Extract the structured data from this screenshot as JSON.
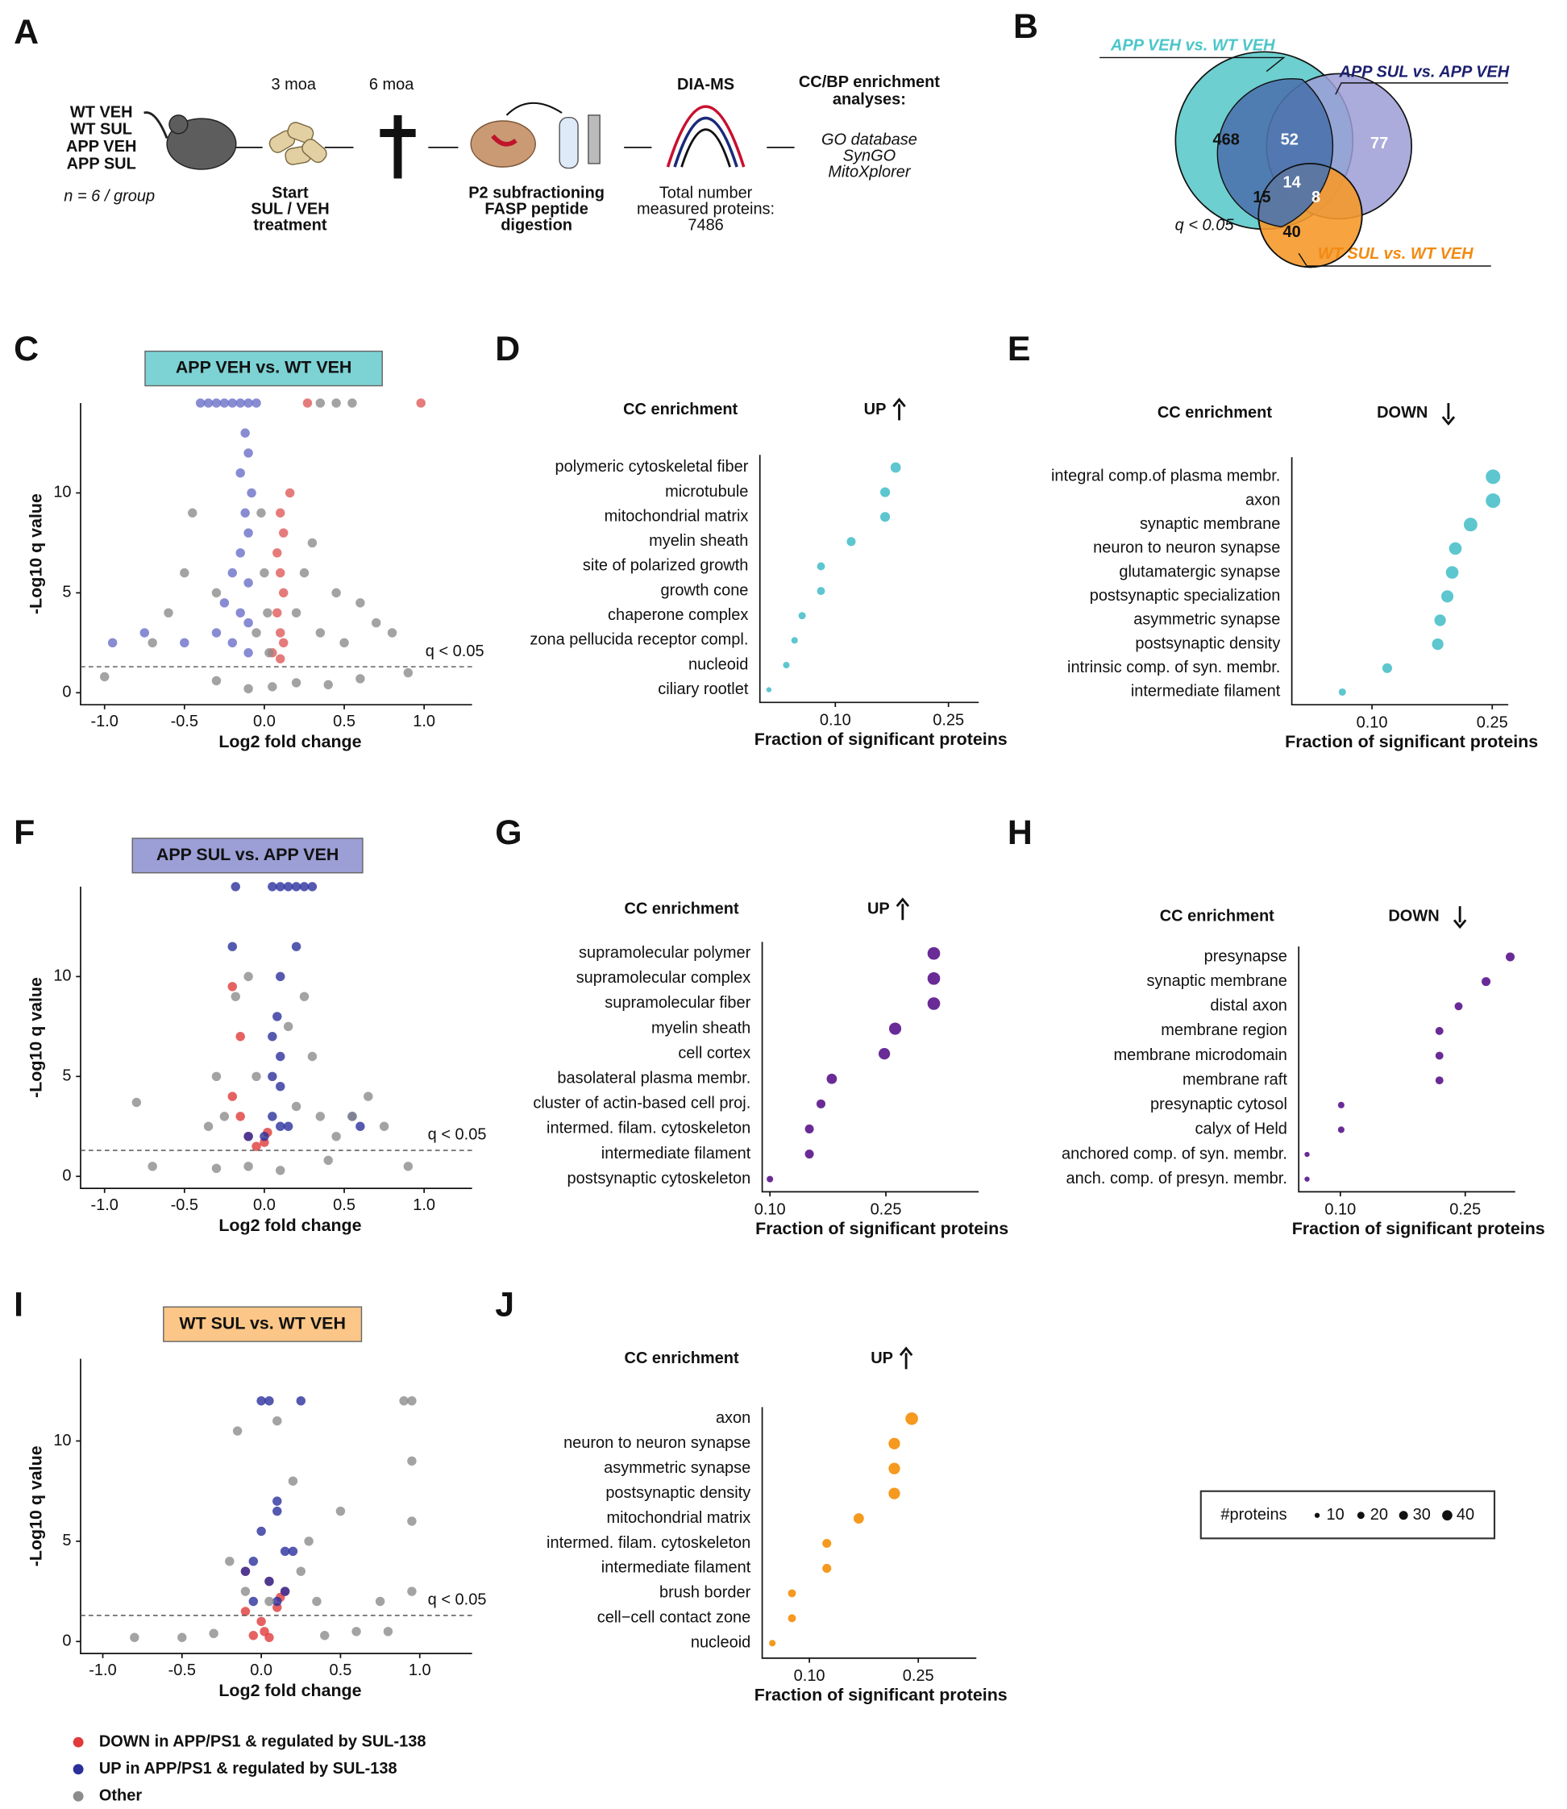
{
  "panels": [
    "A",
    "B",
    "C",
    "D",
    "E",
    "F",
    "G",
    "H",
    "I",
    "J"
  ],
  "design": {
    "groups": [
      "WT VEH",
      "WT SUL",
      "APP VEH",
      "APP SUL"
    ],
    "n_note": "n = 6 / group",
    "times": [
      "3 moa",
      "6 moa"
    ],
    "treatment": [
      "Start",
      "SUL / VEH",
      "treatment"
    ],
    "processing": [
      "P2 subfractioning",
      "FASP peptide",
      "digestion"
    ],
    "ms": {
      "title": "DIA-MS",
      "lines": [
        "Total number",
        "measured proteins:",
        "7486"
      ]
    },
    "analysis": {
      "title": [
        "CC/BP enrichment",
        "analyses:"
      ],
      "databases": [
        "GO database",
        "SynGO",
        "MitoXplorer"
      ]
    }
  },
  "venn": {
    "sets": [
      {
        "name": "APP VEH vs. WT VEH",
        "color": "#6dcfcf"
      },
      {
        "name": "APP SUL vs. APP VEH",
        "color": "#9c9ed6"
      },
      {
        "name": "WT SUL vs. WT VEH",
        "color": "#f5992b"
      }
    ],
    "counts": [
      468,
      52,
      77,
      14,
      15,
      8,
      40
    ],
    "note": "q < 0.05"
  },
  "chart_data": [
    {
      "type": "scatter",
      "title": "APP VEH vs. WT VEH",
      "title_color": "#7dd2d4",
      "xlabel": "Log2 fold change",
      "ylabel": "-Log10 q value",
      "xlim": [
        -1.15,
        1.3
      ],
      "ylim": [
        -0.6,
        14.5
      ],
      "xticks": [
        {
          "value": -1,
          "label": "-1.0"
        },
        -0.5,
        {
          "value": 0,
          "label": "0.0"
        },
        0.5,
        {
          "value": 1,
          "label": "1.0"
        }
      ],
      "yticks": [
        0,
        5,
        10
      ],
      "threshold": {
        "value": 1.3,
        "label": "q < 0.05"
      },
      "series": [
        {
          "color": "#6a6fc8",
          "x": [
            -0.4,
            -0.35,
            -0.3,
            -0.25,
            -0.2,
            -0.15,
            -0.1,
            -0.05,
            -0.12,
            -0.1,
            -0.15,
            -0.08,
            -0.12,
            -0.1,
            -0.15,
            -0.2,
            -0.1,
            -0.25,
            -0.15,
            -0.1,
            -0.3,
            -0.2,
            -0.95,
            -0.75,
            -0.5,
            -0.1
          ],
          "values": [
            14.5,
            14.5,
            14.5,
            14.5,
            14.5,
            14.5,
            14.5,
            14.5,
            13,
            12,
            11,
            10,
            9,
            8,
            7,
            6,
            5.5,
            4.5,
            4,
            3.5,
            3,
            2.5,
            2.5,
            3,
            2.5,
            2
          ]
        },
        {
          "color": "#e05a5a",
          "x": [
            0.27,
            0.98,
            0.16,
            0.1,
            0.12,
            0.08,
            0.1,
            0.12,
            0.08,
            0.1,
            0.12,
            0.05,
            0.1
          ],
          "values": [
            14.5,
            14.5,
            10,
            9,
            8,
            7,
            6,
            5,
            4,
            3,
            2.5,
            2,
            1.7
          ]
        },
        {
          "color": "#8c8c8c",
          "x": [
            0.35,
            0.45,
            0.55,
            -0.45,
            -0.5,
            0.3,
            0.45,
            0.6,
            0.7,
            0.8,
            -0.6,
            -0.7,
            0.35,
            0.5,
            -0.02,
            0,
            0.02,
            -0.05,
            0.03,
            0.2,
            -0.3,
            0.25,
            0.9,
            -1,
            -0.3,
            0.2,
            0.05,
            -0.1,
            0.4,
            0.6
          ],
          "values": [
            14.5,
            14.5,
            14.5,
            9,
            6,
            7.5,
            5,
            4.5,
            3.5,
            3,
            4,
            2.5,
            3,
            2.5,
            9,
            6,
            4,
            3,
            2,
            4,
            5,
            6,
            1,
            0.8,
            0.6,
            0.5,
            0.3,
            0.2,
            0.4,
            0.7
          ]
        }
      ]
    },
    {
      "type": "dot",
      "title": "CC enrichment",
      "direction": "UP",
      "arrow": "up",
      "color": "#5ec6cf",
      "xlabel": "Fraction of significant proteins",
      "xlim": [
        0,
        0.29
      ],
      "xticks": [
        {
          "value": 0.1,
          "label": "0.10"
        },
        {
          "value": 0.25,
          "label": "0.25"
        }
      ],
      "categories": [
        "polymeric cytoskeletal fiber",
        "microtubule",
        "mitochondrial matrix",
        "myelin sheath",
        "site of polarized growth",
        "growth cone",
        "chaperone complex",
        "zona pellucida receptor compl.",
        "nucleoid",
        "ciliary rootlet"
      ],
      "values": [
        0.18,
        0.166,
        0.166,
        0.121,
        0.081,
        0.081,
        0.056,
        0.046,
        0.035,
        0.012
      ],
      "sizes": [
        20,
        18,
        18,
        15,
        12,
        12,
        10,
        8,
        8,
        5
      ]
    },
    {
      "type": "dot",
      "title": "CC enrichment",
      "direction": "DOWN",
      "arrow": "down",
      "color": "#5ec6cf",
      "xlabel": "Fraction of significant proteins",
      "xlim": [
        0,
        0.27
      ],
      "xticks": [
        {
          "value": 0.1,
          "label": "0.10"
        },
        {
          "value": 0.25,
          "label": "0.25"
        }
      ],
      "categories": [
        "integral comp.of plasma membr.",
        "axon",
        "synaptic membrane",
        "neuron to neuron synapse",
        "glutamatergic synapse",
        "postsynaptic specialization",
        "asymmetric synapse",
        "postsynaptic density",
        "intrinsic comp. of syn. membr.",
        "intermediate filament"
      ],
      "values": [
        0.251,
        0.251,
        0.223,
        0.204,
        0.2,
        0.194,
        0.185,
        0.182,
        0.119,
        0.063
      ],
      "sizes": [
        40,
        40,
        35,
        30,
        30,
        28,
        25,
        25,
        18,
        10
      ]
    },
    {
      "type": "scatter",
      "title": "APP SUL vs. APP VEH",
      "title_color": "#9c9ed6",
      "xlabel": "Log2 fold change",
      "ylabel": "-Log10 q value",
      "xlim": [
        -1.15,
        1.3
      ],
      "ylim": [
        -0.6,
        14.5
      ],
      "xticks": [
        {
          "value": -1,
          "label": "-1.0"
        },
        -0.5,
        {
          "value": 0,
          "label": "0.0"
        },
        0.5,
        {
          "value": 1,
          "label": "1.0"
        }
      ],
      "yticks": [
        0,
        5,
        10
      ],
      "threshold": {
        "value": 1.3,
        "label": "q < 0.05"
      },
      "series": [
        {
          "color": "#e03a3a",
          "x": [
            -0.2,
            -0.15,
            -0.2,
            -0.15,
            -0.1,
            -0.05,
            0,
            0.02
          ],
          "values": [
            9.5,
            7,
            4,
            3,
            2,
            1.5,
            1.7,
            2.2
          ]
        },
        {
          "color": "#2a2f9c",
          "x": [
            0.05,
            0.1,
            0.15,
            0.2,
            0.25,
            0.3,
            -0.18,
            0.2,
            -0.2,
            0.1,
            0.08,
            0.05,
            0.1,
            0.05,
            0.1,
            0.05,
            0.1,
            0,
            0.15,
            -0.1,
            0.6,
            0.55
          ],
          "values": [
            14.5,
            14.5,
            14.5,
            14.5,
            14.5,
            14.5,
            14.5,
            11.5,
            11.5,
            10,
            8,
            7,
            6,
            5,
            4.5,
            3,
            2.5,
            2,
            2.5,
            2,
            2.5,
            3
          ]
        },
        {
          "color": "#8c8c8c",
          "x": [
            -0.8,
            -0.3,
            -0.1,
            -0.18,
            0.25,
            0.3,
            0.15,
            0.35,
            0.45,
            0.55,
            0.65,
            0.75,
            -0.25,
            -0.35,
            0.2,
            -0.05,
            0.9,
            -0.7,
            0.4,
            -0.3,
            0.1,
            -0.1
          ],
          "values": [
            3.7,
            5,
            10,
            9,
            9,
            6,
            7.5,
            3,
            2,
            3,
            4,
            2.5,
            3,
            2.5,
            3.5,
            5,
            0.5,
            0.5,
            0.8,
            0.4,
            0.3,
            0.5
          ]
        }
      ]
    },
    {
      "type": "dot",
      "title": "CC enrichment",
      "direction": "UP",
      "arrow": "up",
      "color": "#6a2b96",
      "xlabel": "Fraction of significant proteins",
      "xlim": [
        0.09,
        0.37
      ],
      "xticks": [
        {
          "value": 0.1,
          "label": "0.10"
        },
        {
          "value": 0.25,
          "label": "0.25"
        }
      ],
      "categories": [
        "supramolecular polymer",
        "supramolecular complex",
        "supramolecular fiber",
        "myelin sheath",
        "cell cortex",
        "basolateral plasma membr.",
        "cluster of actin-based cell proj.",
        "intermed. filam. cytoskeleton",
        "intermediate filament",
        "postsynaptic cytoskeleton"
      ],
      "values": [
        0.312,
        0.312,
        0.312,
        0.262,
        0.248,
        0.18,
        0.166,
        0.151,
        0.151,
        0.1
      ],
      "sizes": [
        30,
        30,
        30,
        28,
        25,
        20,
        15,
        15,
        15,
        8
      ]
    },
    {
      "type": "dot",
      "title": "CC enrichment",
      "direction": "DOWN",
      "arrow": "down",
      "color": "#6a2b96",
      "xlabel": "Fraction of significant proteins",
      "xlim": [
        0.05,
        0.31
      ],
      "xticks": [
        {
          "value": 0.1,
          "label": "0.10"
        },
        {
          "value": 0.25,
          "label": "0.25"
        }
      ],
      "categories": [
        "presynapse",
        "synaptic membrane",
        "distal axon",
        "membrane region",
        "membrane microdomain",
        "membrane raft",
        "presynaptic cytosol",
        "calyx of Held",
        "anchored comp. of syn. membr.",
        "anch. comp. of presyn. membr."
      ],
      "values": [
        0.304,
        0.275,
        0.242,
        0.219,
        0.219,
        0.219,
        0.101,
        0.101,
        0.06,
        0.06
      ],
      "sizes": [
        15,
        15,
        12,
        12,
        12,
        12,
        8,
        8,
        5,
        5
      ]
    },
    {
      "type": "scatter",
      "title": "WT SUL vs. WT VEH",
      "title_color": "#fbc687",
      "xlabel": "Log2 fold change",
      "ylabel": "-Log10 q value",
      "xlim": [
        -1.14,
        1.33
      ],
      "ylim": [
        -0.6,
        14.1
      ],
      "xticks": [
        {
          "value": -1,
          "label": "-1.0"
        },
        -0.5,
        {
          "value": 0,
          "label": "0.0"
        },
        0.5,
        {
          "value": 1,
          "label": "1.0"
        }
      ],
      "yticks": [
        0,
        5,
        10
      ],
      "threshold": {
        "value": 1.3,
        "label": "q < 0.05"
      },
      "series": [
        {
          "name": "DOWN in APP/PS1 & regulated by SUL-138",
          "color": "#e03a3a",
          "x": [
            -0.1,
            0.05,
            0.15,
            -0.1,
            0,
            0.02,
            0.05,
            -0.05,
            0.1,
            0.12
          ],
          "values": [
            3.5,
            3,
            2.5,
            1.5,
            1,
            0.5,
            0.2,
            0.3,
            1.7,
            2.2
          ]
        },
        {
          "name": "UP in APP/PS1 & regulated by SUL-138",
          "color": "#2a2f9c",
          "x": [
            0,
            0.05,
            0.25,
            0.1,
            0.1,
            0,
            0.15,
            -0.1,
            0.05,
            0.1,
            -0.05,
            0.15,
            0.2,
            -0.05
          ],
          "values": [
            12,
            12,
            12,
            7,
            6.5,
            5.5,
            4.5,
            3.5,
            3,
            2,
            2,
            2.5,
            4.5,
            4
          ]
        },
        {
          "name": "Other",
          "color": "#8c8c8c",
          "x": [
            -0.15,
            0.1,
            0.9,
            0.95,
            0.95,
            0.95,
            0.95,
            0.5,
            0.2,
            0.3,
            0.25,
            -0.2,
            0.35,
            0.75,
            -0.1,
            0.05,
            0.8,
            -0.3,
            -0.8,
            0.4,
            0.6,
            -0.5
          ],
          "values": [
            10.5,
            11,
            12,
            12,
            9,
            6,
            2.5,
            6.5,
            8,
            5,
            3.5,
            4,
            2,
            2,
            2.5,
            2,
            0.5,
            0.4,
            0.2,
            0.3,
            0.5,
            0.2
          ]
        }
      ]
    },
    {
      "type": "dot",
      "title": "CC enrichment",
      "direction": "UP",
      "arrow": "up",
      "color": "#f5991f",
      "xlabel": "Fraction of significant proteins",
      "xlim": [
        0.035,
        0.33
      ],
      "xticks": [
        {
          "value": 0.1,
          "label": "0.10"
        },
        {
          "value": 0.25,
          "label": "0.25"
        }
      ],
      "categories": [
        "axon",
        "neuron to neuron synapse",
        "asymmetric synapse",
        "postsynaptic density",
        "mitochondrial matrix",
        "intermed. filam. cytoskeleton",
        "intermediate filament",
        "brush border",
        "cell−cell contact zone",
        "nucleoid"
      ],
      "values": [
        0.241,
        0.217,
        0.217,
        0.217,
        0.168,
        0.124,
        0.124,
        0.076,
        0.076,
        0.049
      ],
      "sizes": [
        30,
        25,
        25,
        25,
        20,
        15,
        15,
        12,
        12,
        8
      ]
    }
  ],
  "size_legend": {
    "title": "#proteins",
    "values": [
      10,
      20,
      30,
      40
    ]
  }
}
